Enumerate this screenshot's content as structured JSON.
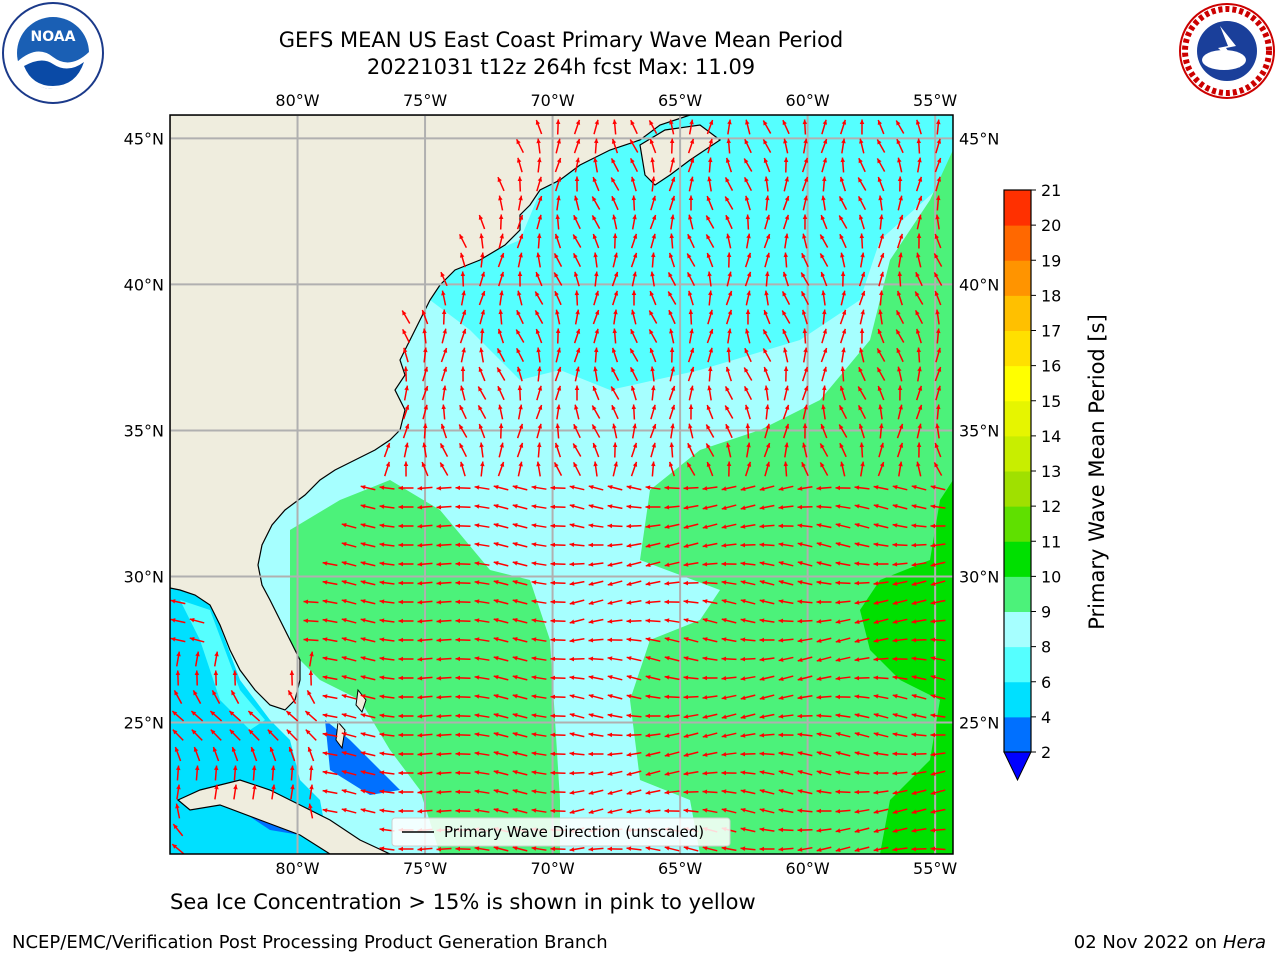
{
  "title": {
    "line1": "GEFS MEAN US East Coast Primary Wave Mean Period",
    "line2": "20221031 t12z 264h fcst   Max: 11.09"
  },
  "map": {
    "extent": {
      "lon": [
        -85,
        -54.3
      ],
      "lat": [
        20.5,
        45.8
      ]
    },
    "lon_ticks": [
      {
        "value": -80,
        "label": "80°W"
      },
      {
        "value": -75,
        "label": "75°W"
      },
      {
        "value": -70,
        "label": "70°W"
      },
      {
        "value": -65,
        "label": "65°W"
      },
      {
        "value": -60,
        "label": "60°W"
      },
      {
        "value": -55,
        "label": "55°W"
      }
    ],
    "lat_ticks": [
      {
        "value": 45,
        "label": "45°N"
      },
      {
        "value": 40,
        "label": "40°N"
      },
      {
        "value": 35,
        "label": "35°N"
      },
      {
        "value": 30,
        "label": "30°N"
      },
      {
        "value": 25,
        "label": "25°N"
      }
    ],
    "legend_label": "Primary Wave Direction (unscaled)",
    "land_color": "#efedde",
    "grid_color": "#b0b0b0",
    "arrow_color": "#ff0000"
  },
  "colorbar": {
    "label": "Primary Wave Mean Period [s]",
    "levels": [
      2,
      4,
      6,
      8,
      9,
      10,
      11,
      12,
      13,
      14,
      15,
      16,
      17,
      18,
      19,
      20,
      21
    ],
    "colors": [
      "#0070ff",
      "#00e0ff",
      "#55ffff",
      "#a6ffff",
      "#4cf27a",
      "#00e000",
      "#5fe000",
      "#a0e000",
      "#c8ee00",
      "#e6f500",
      "#ffff00",
      "#ffe000",
      "#ffc000",
      "#ff9400",
      "#ff6800",
      "#ff3000"
    ],
    "top_color": "#ff0000",
    "under_color": "#0000ff"
  },
  "footer": {
    "sea_ice_note": "Sea Ice Concentration > 15% is shown in pink to yellow",
    "credit": "NCEP/EMC/Verification Post Processing Product Generation Branch",
    "date": "02 Nov 2022 on",
    "host": "Hera"
  },
  "logos": {
    "noaa_text": "NOAA",
    "nws_text": "NATIONAL WEATHER SERVICE"
  }
}
